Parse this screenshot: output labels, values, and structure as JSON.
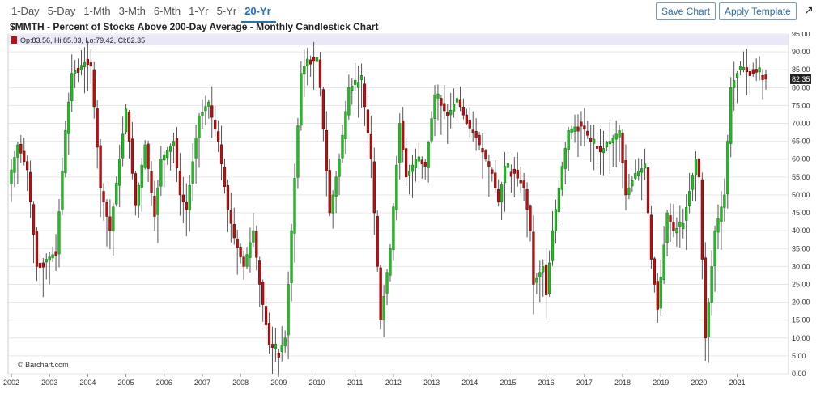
{
  "toolbar": {
    "ranges": [
      "1-Day",
      "5-Day",
      "1-Mth",
      "3-Mth",
      "6-Mth",
      "1-Yr",
      "5-Yr",
      "20-Yr"
    ],
    "active_range": "20-Yr",
    "save_label": "Save Chart",
    "apply_label": "Apply Template",
    "expand_icon": "expand-arrow-icon"
  },
  "chart_title": "$MMTH - Percent of Stocks Above 200-Day Average - Monthly Candlestick Chart",
  "ohlc_label": "Op:83.56, Hi:85.03, Lo:79.42, Cl:82.35",
  "last_price_label": "82.35",
  "watermark": "© Barchart.com",
  "colors": {
    "up": "#22bb22",
    "down": "#bb1111",
    "wick": "#555555",
    "grid": "#e6e6e6",
    "header_band": "#e8e8f8"
  },
  "chart_data": {
    "type": "candlestick",
    "title": "$MMTH - Percent of Stocks Above 200-Day Average - Monthly Candlestick Chart",
    "ylim": [
      0,
      95
    ],
    "y_ticks": [
      "0.00",
      "5.00",
      "10.00",
      "15.00",
      "20.00",
      "25.00",
      "30.00",
      "35.00",
      "40.00",
      "45.00",
      "50.00",
      "55.00",
      "60.00",
      "65.00",
      "70.00",
      "75.00",
      "80.00",
      "85.00",
      "90.00",
      "95.00"
    ],
    "x_ticks": [
      "2002",
      "2003",
      "2004",
      "2005",
      "2006",
      "2007",
      "2008",
      "2009",
      "2010",
      "2011",
      "2012",
      "2013",
      "2014",
      "2015",
      "2016",
      "2017",
      "2018",
      "2019",
      "2020",
      "2021"
    ],
    "x_range": [
      "2002-01",
      "2021-10"
    ],
    "last_candle": {
      "open": 83.56,
      "high": 85.03,
      "low": 79.42,
      "close": 82.35
    },
    "anchor_closes": [
      [
        "2002-01",
        57
      ],
      [
        "2002-03",
        64
      ],
      [
        "2002-06",
        57
      ],
      [
        "2002-09",
        30
      ],
      [
        "2002-12",
        32
      ],
      [
        "2003-03",
        34
      ],
      [
        "2003-06",
        68
      ],
      [
        "2003-08",
        84
      ],
      [
        "2003-12",
        87
      ],
      [
        "2004-02",
        86
      ],
      [
        "2004-05",
        52
      ],
      [
        "2004-08",
        40
      ],
      [
        "2004-11",
        60
      ],
      [
        "2005-01",
        74
      ],
      [
        "2005-04",
        47
      ],
      [
        "2005-07",
        64
      ],
      [
        "2005-10",
        44
      ],
      [
        "2005-12",
        60
      ],
      [
        "2006-04",
        65
      ],
      [
        "2006-06",
        50
      ],
      [
        "2006-08",
        46
      ],
      [
        "2006-11",
        66
      ],
      [
        "2006-12",
        72
      ],
      [
        "2007-03",
        75
      ],
      [
        "2007-06",
        65
      ],
      [
        "2007-09",
        46
      ],
      [
        "2007-11",
        38
      ],
      [
        "2008-02",
        30
      ],
      [
        "2008-05",
        40
      ],
      [
        "2008-07",
        25
      ],
      [
        "2008-10",
        8
      ],
      [
        "2009-01",
        6
      ],
      [
        "2009-03",
        10
      ],
      [
        "2009-05",
        40
      ],
      [
        "2009-08",
        84
      ],
      [
        "2009-10",
        88
      ],
      [
        "2010-01",
        87
      ],
      [
        "2010-02",
        80
      ],
      [
        "2010-05",
        45
      ],
      [
        "2010-08",
        60
      ],
      [
        "2010-11",
        80
      ],
      [
        "2011-03",
        82
      ],
      [
        "2011-06",
        60
      ],
      [
        "2011-08",
        30
      ],
      [
        "2011-09",
        15
      ],
      [
        "2011-12",
        35
      ],
      [
        "2012-03",
        70
      ],
      [
        "2012-05",
        55
      ],
      [
        "2012-08",
        60
      ],
      [
        "2012-11",
        58
      ],
      [
        "2013-02",
        78
      ],
      [
        "2013-06",
        72
      ],
      [
        "2013-09",
        77
      ],
      [
        "2013-12",
        70
      ],
      [
        "2014-03",
        66
      ],
      [
        "2014-06",
        60
      ],
      [
        "2014-08",
        56
      ],
      [
        "2014-10",
        48
      ],
      [
        "2014-12",
        58
      ],
      [
        "2015-03",
        56
      ],
      [
        "2015-06",
        52
      ],
      [
        "2015-08",
        40
      ],
      [
        "2015-09",
        25
      ],
      [
        "2015-12",
        30
      ],
      [
        "2016-01",
        22
      ],
      [
        "2016-03",
        40
      ],
      [
        "2016-06",
        58
      ],
      [
        "2016-08",
        68
      ],
      [
        "2016-12",
        70
      ],
      [
        "2017-03",
        65
      ],
      [
        "2017-06",
        62
      ],
      [
        "2017-09",
        65
      ],
      [
        "2017-12",
        68
      ],
      [
        "2018-02",
        50
      ],
      [
        "2018-05",
        56
      ],
      [
        "2018-08",
        58
      ],
      [
        "2018-10",
        32
      ],
      [
        "2018-12",
        18
      ],
      [
        "2019-03",
        45
      ],
      [
        "2019-05",
        40
      ],
      [
        "2019-08",
        42
      ],
      [
        "2019-12",
        60
      ],
      [
        "2020-01",
        55
      ],
      [
        "2020-02",
        32
      ],
      [
        "2020-03",
        10
      ],
      [
        "2020-06",
        40
      ],
      [
        "2020-09",
        50
      ],
      [
        "2020-11",
        80
      ],
      [
        "2021-02",
        86
      ],
      [
        "2021-05",
        85
      ],
      [
        "2021-09",
        83.56
      ],
      [
        "2021-10",
        82.35
      ]
    ]
  }
}
